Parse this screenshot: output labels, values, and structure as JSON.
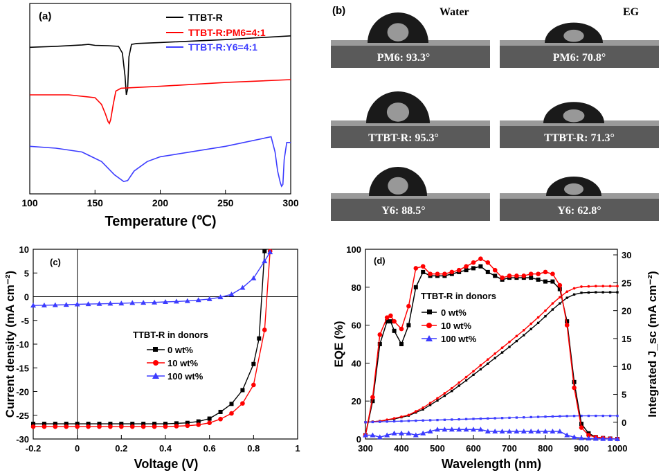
{
  "chart_data": [
    {
      "panel": "(a)",
      "type": "line",
      "title": "",
      "xlabel": "Temperature (℃)",
      "ylabel": "",
      "xlim": [
        100,
        300
      ],
      "xticks": [
        100,
        150,
        200,
        250,
        300
      ],
      "series": [
        {
          "name": "TTBT-R",
          "color": "#000000",
          "x": [
            100,
            120,
            140,
            145,
            150,
            160,
            168,
            171,
            173,
            174,
            175,
            176,
            178,
            182,
            200,
            250,
            300
          ],
          "y": [
            0.77,
            0.775,
            0.782,
            0.785,
            0.78,
            0.778,
            0.775,
            0.74,
            0.62,
            0.52,
            0.55,
            0.72,
            0.785,
            0.79,
            0.795,
            0.81,
            0.83
          ]
        },
        {
          "name": "TTBT-R:PM6=4:1",
          "color": "#ff0000",
          "x": [
            100,
            130,
            150,
            155,
            158,
            160,
            161,
            162,
            164,
            166,
            170,
            200,
            250,
            300
          ],
          "y": [
            0.52,
            0.52,
            0.505,
            0.47,
            0.42,
            0.38,
            0.37,
            0.39,
            0.47,
            0.54,
            0.555,
            0.565,
            0.585,
            0.6
          ]
        },
        {
          "name": "TTBT-R:Y6=4:1",
          "color": "#3c3cff",
          "x": [
            100,
            120,
            140,
            155,
            165,
            172,
            175,
            180,
            190,
            200,
            250,
            285,
            288,
            290,
            292,
            293,
            294,
            295,
            297,
            300
          ],
          "y": [
            0.25,
            0.24,
            0.22,
            0.17,
            0.1,
            0.065,
            0.07,
            0.12,
            0.17,
            0.195,
            0.25,
            0.3,
            0.22,
            0.12,
            0.06,
            0.04,
            0.05,
            0.18,
            0.27,
            0.27
          ]
        }
      ]
    },
    {
      "panel": "(b)",
      "type": "image_grid",
      "columns": [
        "Water",
        "EG"
      ],
      "rows": [
        "PM6",
        "TTBT-R",
        "Y6"
      ],
      "captions": [
        [
          "PM6: 93.3°",
          "PM6: 70.8°"
        ],
        [
          "TTBT-R: 95.3°",
          "TTBT-R: 71.3°"
        ],
        [
          "Y6:  88.5°",
          "Y6:  62.8°"
        ]
      ],
      "contact_angles": {
        "PM6": {
          "Water": 93.3,
          "EG": 70.8
        },
        "TTBT-R": {
          "Water": 95.3,
          "EG": 71.3
        },
        "Y6": {
          "Water": 88.5,
          "EG": 62.8
        }
      }
    },
    {
      "panel": "(c)",
      "type": "line",
      "xlabel": "Voltage (V)",
      "ylabel": "Current density (mA cm⁻²)",
      "xlim": [
        -0.2,
        1.0
      ],
      "ylim": [
        -30,
        10
      ],
      "xticks": [
        -0.2,
        0.0,
        0.2,
        0.4,
        0.6,
        0.8,
        1.0
      ],
      "yticks": [
        -30,
        -25,
        -20,
        -15,
        -10,
        -5,
        0,
        5,
        10
      ],
      "legend_title": "TTBT-R in donors",
      "series": [
        {
          "name": "0 wt%",
          "color": "#000000",
          "marker": "square",
          "x": [
            -0.2,
            -0.15,
            -0.1,
            -0.05,
            0.0,
            0.05,
            0.1,
            0.15,
            0.2,
            0.25,
            0.3,
            0.35,
            0.4,
            0.45,
            0.5,
            0.55,
            0.6,
            0.65,
            0.7,
            0.75,
            0.8,
            0.825,
            0.85
          ],
          "y": [
            -26.8,
            -26.8,
            -26.8,
            -26.8,
            -26.8,
            -26.8,
            -26.8,
            -26.8,
            -26.8,
            -26.8,
            -26.8,
            -26.8,
            -26.8,
            -26.7,
            -26.6,
            -26.3,
            -25.7,
            -24.3,
            -22.6,
            -19.7,
            -14.2,
            -8.8,
            9.6
          ]
        },
        {
          "name": "10 wt%",
          "color": "#ff0000",
          "marker": "circle",
          "x": [
            -0.2,
            -0.15,
            -0.1,
            -0.05,
            0.0,
            0.05,
            0.1,
            0.15,
            0.2,
            0.25,
            0.3,
            0.35,
            0.4,
            0.45,
            0.5,
            0.55,
            0.6,
            0.65,
            0.7,
            0.75,
            0.8,
            0.85,
            0.875
          ],
          "y": [
            -27.4,
            -27.4,
            -27.4,
            -27.4,
            -27.4,
            -27.4,
            -27.4,
            -27.4,
            -27.4,
            -27.4,
            -27.4,
            -27.4,
            -27.4,
            -27.3,
            -27.2,
            -27.0,
            -26.6,
            -25.8,
            -24.6,
            -22.5,
            -18.6,
            -7.0,
            9.6
          ]
        },
        {
          "name": "100 wt%",
          "color": "#3c3cff",
          "marker": "triangle",
          "x": [
            -0.2,
            -0.15,
            -0.1,
            -0.05,
            0.0,
            0.05,
            0.1,
            0.15,
            0.2,
            0.25,
            0.3,
            0.35,
            0.4,
            0.45,
            0.5,
            0.55,
            0.6,
            0.65,
            0.7,
            0.75,
            0.8,
            0.85,
            0.875
          ],
          "y": [
            -1.85,
            -1.8,
            -1.75,
            -1.7,
            -1.6,
            -1.55,
            -1.5,
            -1.45,
            -1.4,
            -1.3,
            -1.25,
            -1.2,
            -1.1,
            -1.0,
            -0.9,
            -0.7,
            -0.5,
            -0.1,
            0.5,
            1.9,
            3.9,
            7.5,
            9.4
          ]
        }
      ]
    },
    {
      "panel": "(d)",
      "type": "line",
      "xlabel": "Wavelength (nm)",
      "ylabel": "EQE (%)",
      "ylabel_right": "Integrated J_sc (mA cm⁻²)",
      "xlim": [
        300,
        1000
      ],
      "ylim": [
        0,
        100
      ],
      "ylim_right": [
        -3,
        31
      ],
      "xticks": [
        300,
        400,
        500,
        600,
        700,
        800,
        900,
        1000
      ],
      "yticks": [
        0,
        20,
        40,
        60,
        80,
        100
      ],
      "yticks_right": [
        0,
        5,
        10,
        15,
        20,
        25,
        30
      ],
      "legend_title": "TTBT-R in donors",
      "eqe_series": [
        {
          "name": "0 wt%",
          "color": "#000000",
          "marker": "square",
          "x": [
            300,
            320,
            340,
            360,
            370,
            380,
            400,
            420,
            440,
            460,
            480,
            500,
            520,
            540,
            560,
            580,
            600,
            620,
            640,
            660,
            680,
            700,
            720,
            740,
            760,
            780,
            800,
            820,
            840,
            860,
            880,
            900,
            920,
            940,
            960,
            980,
            1000
          ],
          "y": [
            2,
            20,
            50,
            62,
            62,
            57,
            50,
            60,
            80,
            88,
            86,
            86,
            86,
            87,
            88,
            89,
            90,
            91,
            88,
            86,
            84,
            85,
            85,
            85,
            85,
            84,
            83,
            83,
            79,
            62,
            30,
            8,
            3,
            1,
            0.5,
            0.2,
            0
          ]
        },
        {
          "name": "10 wt%",
          "color": "#ff0000",
          "marker": "circle",
          "x": [
            300,
            320,
            340,
            360,
            370,
            380,
            400,
            420,
            440,
            460,
            480,
            500,
            520,
            540,
            560,
            580,
            600,
            620,
            640,
            660,
            680,
            700,
            720,
            740,
            760,
            780,
            800,
            820,
            840,
            860,
            880,
            900,
            920,
            940,
            960,
            980,
            1000
          ],
          "y": [
            2,
            22,
            55,
            64,
            65,
            62,
            58,
            70,
            90,
            91,
            87,
            87,
            87,
            88,
            89,
            91,
            93,
            95,
            93,
            89,
            85,
            86,
            86,
            86,
            87,
            87,
            88,
            87,
            81,
            60,
            27,
            6,
            2,
            1,
            0.5,
            0.2,
            0
          ]
        },
        {
          "name": "100 wt%",
          "color": "#3c3cff",
          "marker": "triangle",
          "x": [
            300,
            320,
            340,
            360,
            380,
            400,
            420,
            440,
            460,
            480,
            500,
            520,
            540,
            560,
            580,
            600,
            620,
            640,
            660,
            680,
            700,
            720,
            740,
            760,
            780,
            800,
            820,
            840,
            860,
            880,
            900,
            920,
            940,
            960,
            980,
            1000
          ],
          "y": [
            2,
            2,
            1,
            2,
            3,
            3,
            3,
            2,
            3,
            4,
            5,
            5,
            5,
            5,
            5,
            5,
            5,
            4,
            4,
            4,
            4,
            4,
            4,
            4,
            4,
            4,
            4,
            4,
            2,
            1,
            0.5,
            0.3,
            0.2,
            0.1,
            0.1,
            0
          ]
        }
      ],
      "jsc_series": [
        {
          "name": "0 wt%",
          "color": "#000000",
          "x": [
            300,
            340,
            380,
            420,
            460,
            500,
            540,
            580,
            620,
            660,
            700,
            740,
            780,
            800,
            820,
            840,
            860,
            880,
            900,
            940,
            1000
          ],
          "y": [
            0,
            0.2,
            0.6,
            1.2,
            2.3,
            3.9,
            5.6,
            7.5,
            9.5,
            11.5,
            13.5,
            15.6,
            17.8,
            19.0,
            20.2,
            21.3,
            22.3,
            22.9,
            23.2,
            23.3,
            23.3
          ]
        },
        {
          "name": "10 wt%",
          "color": "#ff0000",
          "x": [
            300,
            340,
            380,
            420,
            460,
            500,
            540,
            580,
            620,
            660,
            700,
            740,
            780,
            800,
            820,
            840,
            860,
            880,
            900,
            940,
            1000
          ],
          "y": [
            0,
            0.2,
            0.7,
            1.3,
            2.6,
            4.3,
            6.1,
            8.1,
            10.2,
            12.3,
            14.4,
            16.5,
            18.8,
            20.0,
            21.3,
            22.4,
            23.4,
            24.0,
            24.3,
            24.4,
            24.4
          ]
        },
        {
          "name": "100 wt%",
          "color": "#3c3cff",
          "x": [
            300,
            400,
            500,
            600,
            700,
            800,
            850,
            900,
            1000
          ],
          "y": [
            0,
            0.2,
            0.4,
            0.6,
            0.8,
            1.0,
            1.1,
            1.15,
            1.15
          ]
        }
      ]
    }
  ]
}
